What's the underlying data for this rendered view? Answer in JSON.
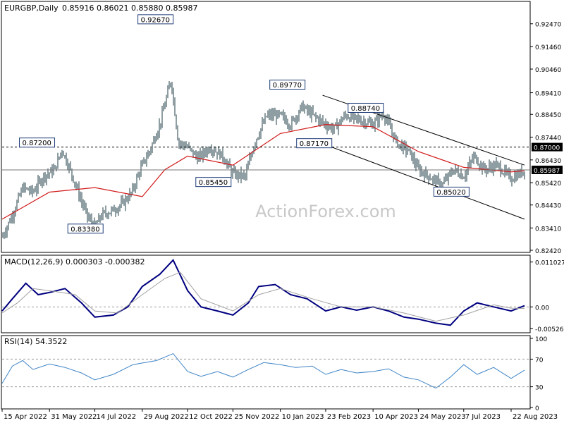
{
  "header": {
    "symbol": "EURGBP,Daily",
    "ohlc": "0.85916 0.86021 0.85880 0.85987"
  },
  "watermark": "ActionForex.com",
  "colors": {
    "background": "#ffffff",
    "frame": "#000000",
    "bars": "#1f3c46",
    "ma": "#d11a1a",
    "channel": "#000000",
    "hline": "#777777",
    "macd": "#000080",
    "signal": "#a0a0a0",
    "rsi": "#3f84c6",
    "watermark": "#c8c8c8",
    "price_tag_bg": "#000000",
    "price_tag_fg": "#ffffff"
  },
  "chart_data": [
    {
      "type": "candlestick",
      "title": "EURGBP,Daily",
      "y_axis_ticks": [
        "0.92470",
        "0.91460",
        "0.90460",
        "0.89410",
        "0.88450",
        "0.87440",
        "0.86430",
        "0.85420",
        "0.84430",
        "0.83410",
        "0.82420"
      ],
      "ylim": [
        0.8242,
        0.929
      ],
      "x_tick_labels": [
        "15 Apr 2022",
        "31 May 2022",
        "14 Jul 2022",
        "29 Aug 2022",
        "12 Oct 2022",
        "25 Nov 2022",
        "10 Jan 2023",
        "23 Feb 2023",
        "10 Apr 2023",
        "24 May 2023",
        "7 Jul 2023",
        "22 Aug 2023"
      ],
      "close_series": [
        [
          "15 Apr 2022",
          0.83
        ],
        [
          "25 Apr 2022",
          0.84
        ],
        [
          "5 May 2022",
          0.852
        ],
        [
          "15 May 2022",
          0.85
        ],
        [
          "25 May 2022",
          0.857
        ],
        [
          "5 Jun 2022",
          0.86
        ],
        [
          "12 Jun 2022",
          0.869
        ],
        [
          "20 Jun 2022",
          0.86
        ],
        [
          "1 Jul 2022",
          0.846
        ],
        [
          "8 Jul 2022",
          0.838
        ],
        [
          "14 Jul 2022",
          0.835
        ],
        [
          "21 Jul 2022",
          0.84
        ],
        [
          "1 Aug 2022",
          0.842
        ],
        [
          "10 Aug 2022",
          0.845
        ],
        [
          "19 Aug 2022",
          0.85
        ],
        [
          "27 Aug 2022",
          0.86
        ],
        [
          "5 Sep 2022",
          0.868
        ],
        [
          "15 Sep 2022",
          0.88
        ],
        [
          "26 Sep 2022",
          0.9
        ],
        [
          "3 Oct 2022",
          0.872
        ],
        [
          "12 Oct 2022",
          0.87
        ],
        [
          "22 Oct 2022",
          0.865
        ],
        [
          "3 Nov 2022",
          0.87
        ],
        [
          "15 Nov 2022",
          0.866
        ],
        [
          "25 Nov 2022",
          0.858
        ],
        [
          "7 Dec 2022",
          0.857
        ],
        [
          "16 Dec 2022",
          0.872
        ],
        [
          "28 Dec 2022",
          0.884
        ],
        [
          "10 Jan 2023",
          0.884
        ],
        [
          "20 Jan 2023",
          0.88
        ],
        [
          "31 Jan 2023",
          0.888
        ],
        [
          "8 Feb 2023",
          0.885
        ],
        [
          "23 Feb 2023",
          0.88
        ],
        [
          "3 Mar 2023",
          0.878
        ],
        [
          "14 Mar 2023",
          0.884
        ],
        [
          "28 Mar 2023",
          0.882
        ],
        [
          "10 Apr 2023",
          0.88
        ],
        [
          "20 Apr 2023",
          0.885
        ],
        [
          "3 May 2023",
          0.872
        ],
        [
          "15 May 2023",
          0.868
        ],
        [
          "24 May 2023",
          0.86
        ],
        [
          "6 Jun 2023",
          0.856
        ],
        [
          "16 Jun 2023",
          0.853
        ],
        [
          "27 Jun 2023",
          0.86
        ],
        [
          "7 Jul 2023",
          0.857
        ],
        [
          "17 Jul 2023",
          0.866
        ],
        [
          "27 Jul 2023",
          0.86
        ],
        [
          "8 Aug 2023",
          0.862
        ],
        [
          "22 Aug 2023",
          0.856
        ],
        [
          "30 Aug 2023",
          0.858
        ],
        [
          "4 Sep 2023",
          0.86
        ]
      ],
      "moving_average": [
        [
          "15 Apr 2022",
          0.838
        ],
        [
          "31 May 2022",
          0.85
        ],
        [
          "14 Jul 2022",
          0.852
        ],
        [
          "29 Aug 2022",
          0.848
        ],
        [
          "20 Sep 2022",
          0.86
        ],
        [
          "12 Oct 2022",
          0.866
        ],
        [
          "25 Nov 2022",
          0.862
        ],
        [
          "10 Jan 2023",
          0.876
        ],
        [
          "23 Feb 2023",
          0.88
        ],
        [
          "10 Apr 2023",
          0.879
        ],
        [
          "24 May 2023",
          0.868
        ],
        [
          "7 Jul 2023",
          0.861
        ],
        [
          "22 Aug 2023",
          0.859
        ],
        [
          "4 Sep 2023",
          0.8595
        ]
      ],
      "horizontal_lines": [
        {
          "value": 0.87,
          "style": "dashed",
          "tag": "0.87000"
        },
        {
          "value": 0.85987,
          "style": "solid",
          "tag": "0.85987"
        }
      ],
      "channel_lines": [
        {
          "from": [
            "20 Feb 2023",
            0.893
          ],
          "to": [
            "4 Sep 2023",
            0.862
          ]
        },
        {
          "from": [
            "20 Feb 2023",
            0.8715
          ],
          "to": [
            "4 Sep 2023",
            0.838
          ]
        }
      ],
      "annotations": [
        {
          "text": "0.92670",
          "at": [
            "28 Sep 2022",
            0.9267
          ],
          "side": "left"
        },
        {
          "text": "0.89770",
          "at": [
            "3 Feb 2023",
            0.8977
          ],
          "side": "left"
        },
        {
          "text": "0.88740",
          "at": [
            "20 Apr 2023",
            0.8874
          ],
          "side": "left"
        },
        {
          "text": "0.87200",
          "at": [
            "5 Jun 2022",
            0.872
          ],
          "side": "left"
        },
        {
          "text": "0.87170",
          "at": [
            "1 Mar 2023",
            0.8717
          ],
          "side": "left"
        },
        {
          "text": "0.85450",
          "at": [
            "20 Oct 2022",
            0.8545
          ],
          "side": "right"
        },
        {
          "text": "0.85020",
          "at": [
            "8 Jun 2023",
            0.8502
          ],
          "side": "right"
        },
        {
          "text": "0.83380",
          "at": [
            "22 Jul 2022",
            0.8338
          ],
          "side": "left"
        }
      ]
    },
    {
      "type": "line",
      "title": "MACD(12,26,9) 0.000303 -0.000382",
      "y_axis_ticks": [
        "0.011027",
        "0.00",
        "-0.005267"
      ],
      "ylim": [
        -0.006,
        0.012
      ],
      "series": [
        {
          "name": "MACD",
          "points": [
            [
              "15 Apr 2022",
              -0.001
            ],
            [
              "25 Apr 2022",
              0.002
            ],
            [
              "8 May 2022",
              0.0058
            ],
            [
              "20 May 2022",
              0.003
            ],
            [
              "1 Jun 2022",
              0.0036
            ],
            [
              "15 Jun 2022",
              0.0045
            ],
            [
              "1 Jul 2022",
              0.001
            ],
            [
              "14 Jul 2022",
              -0.0025
            ],
            [
              "1 Aug 2022",
              -0.002
            ],
            [
              "15 Aug 2022",
              0.0
            ],
            [
              "29 Aug 2022",
              0.005
            ],
            [
              "15 Sep 2022",
              0.008
            ],
            [
              "28 Sep 2022",
              0.0115
            ],
            [
              "12 Oct 2022",
              0.004
            ],
            [
              "25 Oct 2022",
              0.0
            ],
            [
              "10 Nov 2022",
              -0.001
            ],
            [
              "25 Nov 2022",
              -0.002
            ],
            [
              "10 Dec 2022",
              0.001
            ],
            [
              "20 Dec 2022",
              0.005
            ],
            [
              "5 Jan 2023",
              0.0055
            ],
            [
              "20 Jan 2023",
              0.003
            ],
            [
              "5 Feb 2023",
              0.002
            ],
            [
              "23 Feb 2023",
              -0.001
            ],
            [
              "10 Mar 2023",
              0.0
            ],
            [
              "25 Mar 2023",
              -0.0008
            ],
            [
              "10 Apr 2023",
              0.0
            ],
            [
              "25 Apr 2023",
              -0.001
            ],
            [
              "10 May 2023",
              -0.0025
            ],
            [
              "24 May 2023",
              -0.003
            ],
            [
              "10 Jun 2023",
              -0.004
            ],
            [
              "24 Jun 2023",
              -0.0045
            ],
            [
              "7 Jul 2023",
              -0.001
            ],
            [
              "20 Jul 2023",
              0.001
            ],
            [
              "5 Aug 2023",
              0.0
            ],
            [
              "22 Aug 2023",
              -0.001
            ],
            [
              "4 Sep 2023",
              0.0003
            ]
          ]
        },
        {
          "name": "Signal",
          "points": [
            [
              "15 Apr 2022",
              -0.0015
            ],
            [
              "30 Apr 2022",
              0.001
            ],
            [
              "15 May 2022",
              0.0045
            ],
            [
              "5 Jun 2022",
              0.0038
            ],
            [
              "25 Jun 2022",
              0.003
            ],
            [
              "14 Jul 2022",
              -0.001
            ],
            [
              "5 Aug 2022",
              -0.0015
            ],
            [
              "29 Aug 2022",
              0.003
            ],
            [
              "20 Sep 2022",
              0.007
            ],
            [
              "5 Oct 2022",
              0.0085
            ],
            [
              "25 Oct 2022",
              0.002
            ],
            [
              "25 Nov 2022",
              -0.001
            ],
            [
              "20 Dec 2022",
              0.003
            ],
            [
              "10 Jan 2023",
              0.0045
            ],
            [
              "10 Feb 2023",
              0.002
            ],
            [
              "10 Mar 2023",
              0.0
            ],
            [
              "10 Apr 2023",
              0.0
            ],
            [
              "10 May 2023",
              -0.0015
            ],
            [
              "10 Jun 2023",
              -0.0035
            ],
            [
              "7 Jul 2023",
              -0.002
            ],
            [
              "5 Aug 2023",
              0.0005
            ],
            [
              "22 Aug 2023",
              -0.0003
            ],
            [
              "4 Sep 2023",
              -0.0004
            ]
          ]
        }
      ],
      "horizontal_lines": [
        {
          "value": 0.0,
          "style": "dashed"
        }
      ]
    },
    {
      "type": "line",
      "title": "RSI(14) 54.3522",
      "y_axis_ticks": [
        "100",
        "70",
        "30",
        "0"
      ],
      "ylim": [
        0,
        100
      ],
      "series": [
        {
          "name": "RSI",
          "points": [
            [
              "15 Apr 2022",
              35
            ],
            [
              "25 Apr 2022",
              60
            ],
            [
              "5 May 2022",
              68
            ],
            [
              "15 May 2022",
              55
            ],
            [
              "31 May 2022",
              63
            ],
            [
              "15 Jun 2022",
              58
            ],
            [
              "1 Jul 2022",
              50
            ],
            [
              "14 Jul 2022",
              40
            ],
            [
              "1 Aug 2022",
              48
            ],
            [
              "20 Aug 2022",
              62
            ],
            [
              "12 Sep 2022",
              68
            ],
            [
              "28 Sep 2022",
              78
            ],
            [
              "12 Oct 2022",
              52
            ],
            [
              "25 Oct 2022",
              45
            ],
            [
              "10 Nov 2022",
              52
            ],
            [
              "25 Nov 2022",
              44
            ],
            [
              "10 Dec 2022",
              55
            ],
            [
              "25 Dec 2022",
              65
            ],
            [
              "10 Jan 2023",
              62
            ],
            [
              "25 Jan 2023",
              58
            ],
            [
              "10 Feb 2023",
              60
            ],
            [
              "23 Feb 2023",
              48
            ],
            [
              "10 Mar 2023",
              55
            ],
            [
              "25 Mar 2023",
              50
            ],
            [
              "10 Apr 2023",
              52
            ],
            [
              "25 Apr 2023",
              56
            ],
            [
              "10 May 2023",
              44
            ],
            [
              "24 May 2023",
              40
            ],
            [
              "10 Jun 2023",
              28
            ],
            [
              "24 Jun 2023",
              44
            ],
            [
              "7 Jul 2023",
              62
            ],
            [
              "20 Jul 2023",
              48
            ],
            [
              "5 Aug 2023",
              58
            ],
            [
              "22 Aug 2023",
              42
            ],
            [
              "4 Sep 2023",
              54
            ]
          ]
        }
      ],
      "horizontal_lines": [
        {
          "value": 70,
          "style": "dashed"
        },
        {
          "value": 30,
          "style": "dashed"
        }
      ]
    }
  ]
}
